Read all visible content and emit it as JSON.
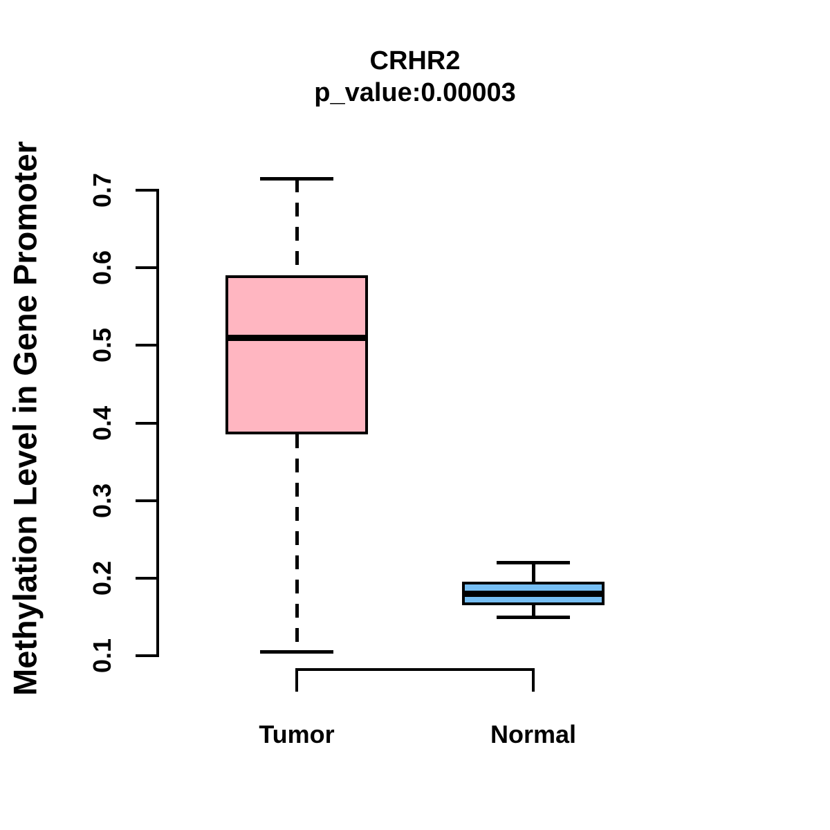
{
  "chart_data": {
    "type": "boxplot",
    "title": "CRHR2",
    "subtitle": "p_value:0.00003",
    "ylabel": "Methylation Level in Gene Promoter",
    "xlabel": "",
    "ylim": [
      0.1,
      0.7
    ],
    "yticks": [
      0.1,
      0.2,
      0.3,
      0.4,
      0.5,
      0.6,
      0.7
    ],
    "grid": false,
    "legend": false,
    "line_color": "#000000",
    "background_color": "#ffffff",
    "groups": [
      {
        "label": "Tumor",
        "color": "#FFB6C1",
        "whisker_low": 0.105,
        "q1": 0.385,
        "median": 0.51,
        "q3": 0.59,
        "whisker_high": 0.715,
        "whisker_style": "dashed"
      },
      {
        "label": "Normal",
        "color": "#76BEF3",
        "whisker_low": 0.15,
        "q1": 0.165,
        "median": 0.18,
        "q3": 0.195,
        "whisker_high": 0.22,
        "whisker_style": "solid"
      }
    ]
  }
}
